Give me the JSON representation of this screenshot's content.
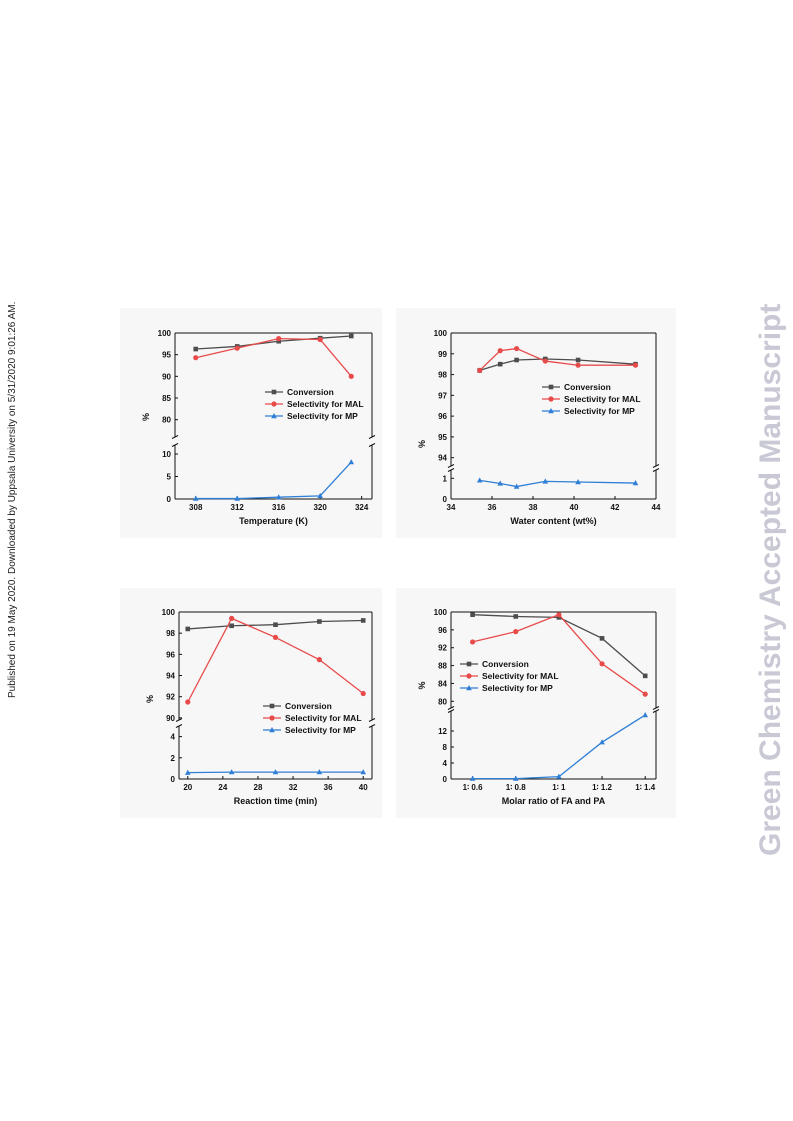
{
  "side_note": "Published on 19 May 2020. Downloaded by Uppsala University on 5/31/2020 9:01:26 AM.",
  "watermark": "Green Chemistry Accepted Manuscript",
  "legend": {
    "conversion": "Conversion",
    "mal": "Selectivity for MAL",
    "mp": "Selectivity for MP"
  },
  "colors": {
    "conversion": "#4d4d4d",
    "mal": "#e84a4a",
    "mp": "#2f7fd6",
    "watermark": "#c9c9d6"
  },
  "chart_data": [
    {
      "type": "line",
      "xlabel": "Temperature (K)",
      "ylabel": "%",
      "xlim": [
        306,
        325
      ],
      "xticks": [
        "308",
        "312",
        "316",
        "320",
        "324"
      ],
      "xtick_values": [
        308,
        312,
        316,
        320,
        324
      ],
      "upper": {
        "ylim": [
          76,
          100
        ],
        "yticks": [
          80,
          85,
          90,
          95,
          100
        ]
      },
      "lower": {
        "ylim": [
          0,
          12
        ],
        "yticks": [
          0,
          5,
          10
        ]
      },
      "x": [
        308,
        312,
        316,
        320,
        323
      ],
      "series": [
        {
          "key": "conversion",
          "name": "Conversion",
          "marker": "square",
          "values": [
            96.3,
            96.9,
            98.1,
            98.8,
            99.3
          ]
        },
        {
          "key": "mal",
          "name": "Selectivity for MAL",
          "marker": "circle",
          "values": [
            94.3,
            96.5,
            98.7,
            98.5,
            90.0
          ]
        },
        {
          "key": "mp",
          "name": "Selectivity for MP",
          "marker": "triangle",
          "values": [
            0.1,
            0.1,
            0.4,
            0.7,
            8.2
          ]
        }
      ],
      "legend_position": "right-middle"
    },
    {
      "type": "line",
      "xlabel": "Water content (wt%)",
      "ylabel": "%",
      "xlim": [
        34,
        44
      ],
      "xticks": [
        "34",
        "36",
        "38",
        "40",
        "42",
        "44"
      ],
      "xtick_values": [
        34,
        36,
        38,
        40,
        42,
        44
      ],
      "upper": {
        "ylim": [
          93.6,
          100
        ],
        "yticks": [
          94,
          95,
          96,
          97,
          98,
          99,
          100
        ]
      },
      "lower": {
        "ylim": [
          0,
          1.4
        ],
        "yticks": [
          0,
          1
        ]
      },
      "x": [
        35.4,
        36.4,
        37.2,
        38.6,
        40.2,
        43.0
      ],
      "series": [
        {
          "key": "conversion",
          "name": "Conversion",
          "marker": "square",
          "values": [
            98.2,
            98.5,
            98.7,
            98.75,
            98.7,
            98.5
          ]
        },
        {
          "key": "mal",
          "name": "Selectivity for MAL",
          "marker": "circle",
          "values": [
            98.2,
            99.15,
            99.25,
            98.65,
            98.45,
            98.45
          ]
        },
        {
          "key": "mp",
          "name": "Selectivity for MP",
          "marker": "triangle",
          "values": [
            0.9,
            0.75,
            0.6,
            0.85,
            0.82,
            0.77
          ]
        }
      ],
      "legend_position": "right-middle"
    },
    {
      "type": "line",
      "xlabel": "Reaction time (min)",
      "ylabel": "%",
      "xlim": [
        19,
        41
      ],
      "xticks": [
        "20",
        "24",
        "28",
        "32",
        "36",
        "40"
      ],
      "xtick_values": [
        20,
        24,
        28,
        32,
        36,
        40
      ],
      "upper": {
        "ylim": [
          89.8,
          100
        ],
        "yticks": [
          90,
          92,
          94,
          96,
          98,
          100
        ]
      },
      "lower": {
        "ylim": [
          0,
          5
        ],
        "yticks": [
          0,
          2,
          4
        ]
      },
      "x": [
        20,
        25,
        30,
        35,
        40
      ],
      "series": [
        {
          "key": "conversion",
          "name": "Conversion",
          "marker": "square",
          "values": [
            98.4,
            98.7,
            98.8,
            99.1,
            99.2
          ]
        },
        {
          "key": "mal",
          "name": "Selectivity for MAL",
          "marker": "circle",
          "values": [
            91.5,
            99.4,
            97.6,
            95.5,
            92.3
          ]
        },
        {
          "key": "mp",
          "name": "Selectivity for MP",
          "marker": "triangle",
          "values": [
            0.6,
            0.65,
            0.65,
            0.65,
            0.65
          ]
        }
      ],
      "legend_position": "right-bottom"
    },
    {
      "type": "line",
      "xlabel": "Molar ratio of FA and PA",
      "ylabel": "%",
      "xlim": [
        0.5,
        1.45
      ],
      "xticks": [
        "1∶ 0.6",
        "1∶ 0.8",
        "1∶ 1",
        "1∶ 1.2",
        "1∶ 1.4"
      ],
      "xtick_values": [
        0.6,
        0.8,
        1.0,
        1.2,
        1.4
      ],
      "upper": {
        "ylim": [
          78.5,
          100
        ],
        "yticks": [
          80,
          84,
          88,
          92,
          96,
          100
        ]
      },
      "lower": {
        "ylim": [
          0,
          17
        ],
        "yticks": [
          0,
          4,
          8,
          12
        ]
      },
      "x": [
        0.6,
        0.8,
        1.0,
        1.2,
        1.4
      ],
      "series": [
        {
          "key": "conversion",
          "name": "Conversion",
          "marker": "square",
          "values": [
            99.4,
            99.0,
            98.8,
            94.1,
            85.7
          ]
        },
        {
          "key": "mal",
          "name": "Selectivity for MAL",
          "marker": "circle",
          "values": [
            93.3,
            95.6,
            99.4,
            88.4,
            81.6
          ]
        },
        {
          "key": "mp",
          "name": "Selectivity for MP",
          "marker": "triangle",
          "values": [
            0.1,
            0.1,
            0.6,
            9.2,
            16.0
          ]
        }
      ],
      "legend_position": "left-middle"
    }
  ]
}
